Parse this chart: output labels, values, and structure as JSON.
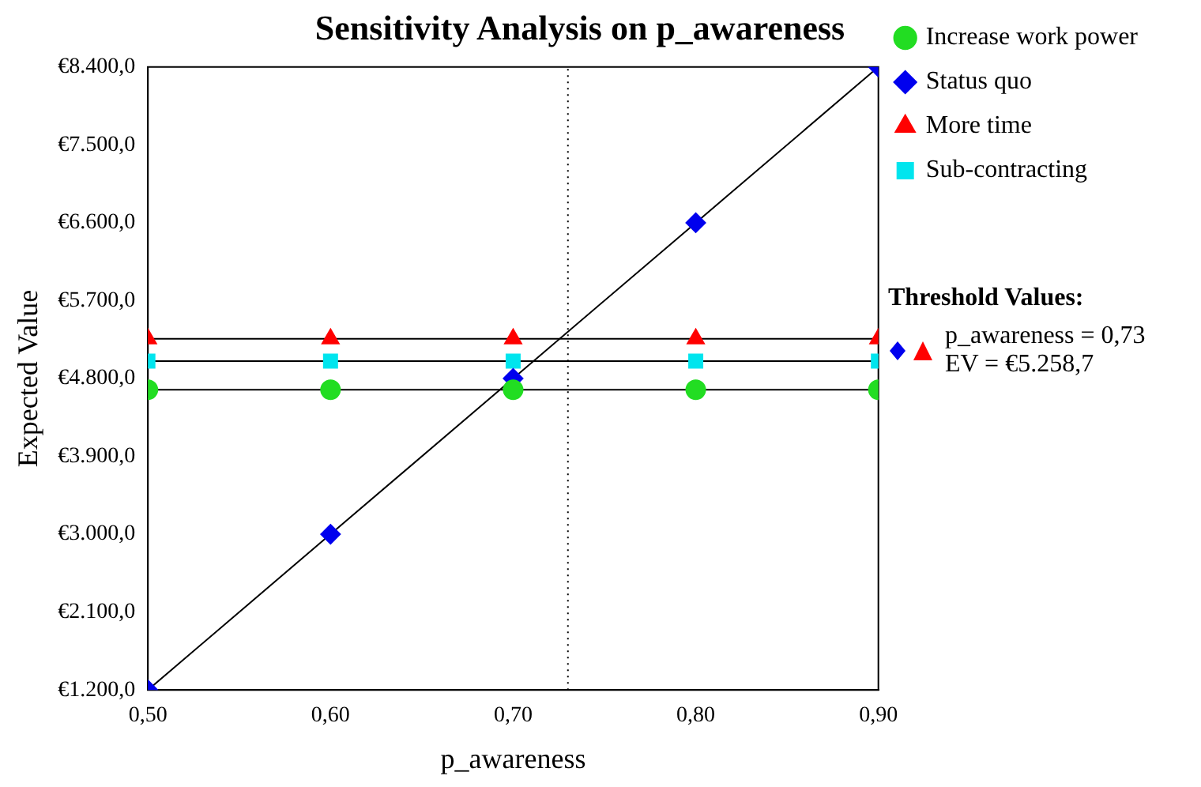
{
  "chart_data": {
    "type": "line",
    "title": "Sensitivity Analysis on p_awareness",
    "xlabel": "p_awareness",
    "ylabel": "Expected Value",
    "x": [
      0.5,
      0.6,
      0.7,
      0.8,
      0.9
    ],
    "xlim": [
      0.5,
      0.9
    ],
    "xticks": [
      {
        "value": 0.5,
        "label": "0,50"
      },
      {
        "value": 0.6,
        "label": "0,60"
      },
      {
        "value": 0.7,
        "label": "0,70"
      },
      {
        "value": 0.8,
        "label": "0,80"
      },
      {
        "value": 0.9,
        "label": "0,90"
      }
    ],
    "ylim": [
      1200,
      8400
    ],
    "yticks": [
      {
        "value": 1200,
        "label": "€1.200,0"
      },
      {
        "value": 2100,
        "label": "€2.100,0"
      },
      {
        "value": 3000,
        "label": "€3.000,0"
      },
      {
        "value": 3900,
        "label": "€3.900,0"
      },
      {
        "value": 4800,
        "label": "€4.800,0"
      },
      {
        "value": 5700,
        "label": "€5.700,0"
      },
      {
        "value": 6600,
        "label": "€6.600,0"
      },
      {
        "value": 7500,
        "label": "€7.500,0"
      },
      {
        "value": 8400,
        "label": "€8.400,0"
      }
    ],
    "series": [
      {
        "name": "Increase work power",
        "color": "#22dd22",
        "marker": "circle",
        "values": [
          4670,
          4670,
          4670,
          4670,
          4670
        ]
      },
      {
        "name": "Status quo",
        "color": "#0000ee",
        "marker": "diamond",
        "values": [
          1200,
          3000,
          4800,
          6600,
          8400
        ]
      },
      {
        "name": "More time",
        "color": "#ff0000",
        "marker": "triangle",
        "values": [
          5260,
          5260,
          5260,
          5260,
          5260
        ]
      },
      {
        "name": "Sub-contracting",
        "color": "#00e5ee",
        "marker": "square",
        "values": [
          5000,
          5000,
          5000,
          5000,
          5000
        ]
      }
    ],
    "ref_lines": [
      {
        "axis": "x",
        "value": 0.73,
        "line_style": "dotted"
      }
    ],
    "annotations": [
      "Threshold Values:",
      "p_awareness = 0,73",
      "EV = €5.258,7"
    ],
    "legend": "right",
    "grid": false
  }
}
